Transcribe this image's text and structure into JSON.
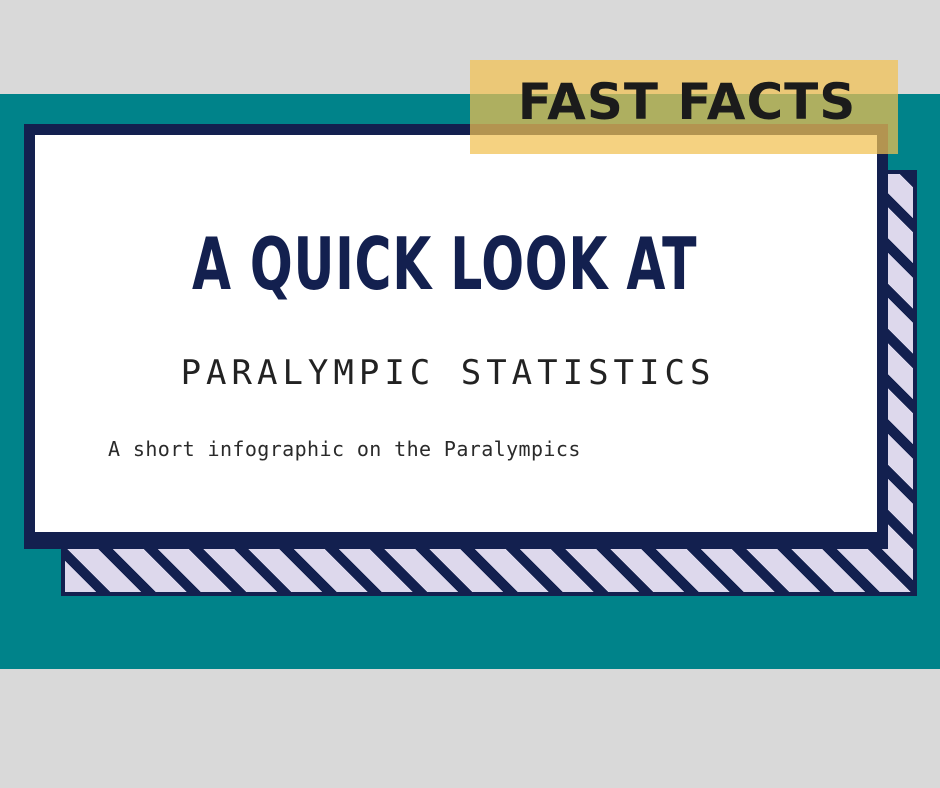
{
  "banner": {
    "label": "FAST FACTS"
  },
  "card": {
    "title": "A QUICK LOOK AT",
    "subtitle": "PARALYMPIC STATISTICS",
    "tagline": "A short infographic on the Paralympics"
  },
  "colors": {
    "background": "#d9d9d9",
    "teal_band": "#00838a",
    "navy": "#13204f",
    "stripe_light": "#ddd8ec",
    "banner_fill": "#f1c050"
  }
}
